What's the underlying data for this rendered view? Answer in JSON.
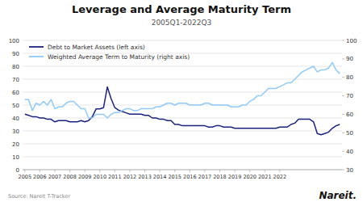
{
  "chart_data": {
    "type": "line",
    "title": "Leverage and Average Maturity Term",
    "subtitle": "2005Q1-2022Q3",
    "annotations": [
      "Source: Nareit T-Tracker",
      "Nareit."
    ],
    "x": [
      2005,
      2005.25,
      2005.5,
      2005.75,
      2006,
      2006.25,
      2006.5,
      2006.75,
      2007,
      2007.25,
      2007.5,
      2007.75,
      2008,
      2008.25,
      2008.5,
      2008.75,
      2009,
      2009.25,
      2009.5,
      2009.75,
      2010,
      2010.25,
      2010.5,
      2010.75,
      2011,
      2011.25,
      2011.5,
      2011.75,
      2012,
      2012.25,
      2012.5,
      2012.75,
      2013,
      2013.25,
      2013.5,
      2013.75,
      2014,
      2014.25,
      2014.5,
      2014.75,
      2015,
      2015.25,
      2015.5,
      2015.75,
      2016,
      2016.25,
      2016.5,
      2016.75,
      2017,
      2017.25,
      2017.5,
      2017.75,
      2018,
      2018.25,
      2018.5,
      2018.75,
      2019,
      2019.25,
      2019.5,
      2019.75,
      2020,
      2020.25,
      2020.5,
      2020.75,
      2021,
      2021.25,
      2021.5,
      2021.75,
      2022,
      2022.25,
      2022.5,
      2022.75,
      2023,
      2023.25,
      2023.5,
      2023.75,
      2024,
      2024.25,
      2024.5,
      2024.75,
      2025,
      2025.25,
      2025.5,
      2025.75,
      2026
    ],
    "xlim": [
      2004.85,
      2026.15
    ],
    "xticks": [
      2005,
      2006,
      2007,
      2008,
      2009,
      2010,
      2011,
      2012,
      2013,
      2014,
      2015,
      2016,
      2017,
      2018,
      2019,
      2020,
      2021,
      2022
    ],
    "ylim": [
      0,
      100
    ],
    "yticks": [
      0,
      10,
      20,
      30,
      40,
      50,
      60,
      70,
      80,
      90,
      100
    ],
    "y2lim": [
      30,
      100
    ],
    "y2ticks": [
      30,
      40,
      50,
      60,
      70,
      80,
      90,
      100
    ],
    "grid": true,
    "legend": "upper left",
    "series": [
      {
        "name": "Debt to Market Assets (left axis)",
        "color": "#1a237e",
        "values": [
          43,
          42,
          41,
          41,
          40,
          40,
          39,
          39,
          37,
          38,
          38,
          38,
          37,
          37,
          37,
          38,
          37,
          38,
          41,
          47,
          47,
          48,
          64,
          55,
          48,
          46,
          45,
          44,
          43,
          43,
          43,
          43,
          42,
          42,
          40,
          40,
          39,
          39,
          38,
          38,
          35,
          35,
          34,
          34,
          34,
          34,
          34,
          34,
          34,
          33,
          33,
          34,
          34,
          33,
          33,
          33,
          32,
          32,
          32,
          32,
          32,
          32,
          32,
          32,
          32,
          32,
          32,
          32,
          33,
          33,
          33,
          35,
          36,
          39,
          39,
          39,
          39,
          37,
          28,
          27,
          28,
          29,
          32,
          34,
          35
        ]
      },
      {
        "name": "Weighted Average Term to Maturity (right axis)",
        "color": "#90caf9",
        "axis": "y2",
        "values": [
          68,
          68,
          62,
          66,
          65,
          67,
          65,
          68,
          63,
          64,
          64,
          66,
          67,
          67,
          65,
          63,
          63,
          58,
          58,
          60,
          60,
          60,
          58,
          60,
          61,
          61,
          62,
          63,
          63,
          62,
          62,
          63,
          63,
          63,
          63,
          64,
          64,
          65,
          66,
          66,
          65,
          66,
          66,
          66,
          65,
          65,
          65,
          65,
          66,
          66,
          65,
          65,
          65,
          65,
          65,
          64,
          64,
          64,
          65,
          65,
          67,
          68,
          70,
          70,
          72,
          74,
          74,
          74,
          75,
          76,
          77,
          77,
          79,
          81,
          83,
          84,
          85,
          86,
          83,
          84,
          84,
          85,
          88,
          84,
          82
        ]
      }
    ]
  }
}
